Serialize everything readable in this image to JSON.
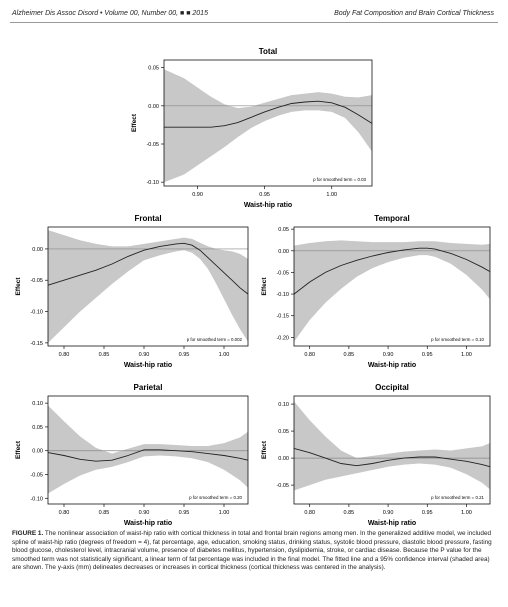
{
  "header": {
    "left": "Alzheimer Dis Assoc Disord • Volume 00, Number 00, ■ ■ 2015",
    "right": "Body Fat Composition and Brain Cortical Thickness"
  },
  "chart_data": [
    {
      "type": "line",
      "title": "Total",
      "xlabel": "Waist-hip ratio",
      "ylabel": "Effect",
      "annotation": "p for smoothed term = 0.03",
      "xlim": [
        0.875,
        1.03
      ],
      "ylim": [
        -0.105,
        0.06
      ],
      "xticks": [
        "0.90",
        "0.95",
        "1.00"
      ],
      "xticks_minor": [
        "0.85",
        "0.90",
        "0.95",
        "1.00"
      ],
      "xtick_values": [
        0.85,
        0.9,
        0.95,
        1.0
      ],
      "yticks": [
        0.05,
        0.0,
        -0.05,
        -0.1
      ],
      "ytick_labels": [
        "0.05",
        "0.00",
        "-0.05",
        "-0.10"
      ],
      "zero_line": 0,
      "x": [
        0.875,
        0.89,
        0.9,
        0.91,
        0.92,
        0.93,
        0.94,
        0.95,
        0.96,
        0.97,
        0.98,
        0.99,
        1.0,
        1.01,
        1.02,
        1.03
      ],
      "fit": [
        -0.028,
        -0.028,
        -0.028,
        -0.028,
        -0.026,
        -0.022,
        -0.015,
        -0.008,
        -0.002,
        0.003,
        0.005,
        0.006,
        0.004,
        -0.002,
        -0.012,
        -0.023
      ],
      "lower": [
        -0.1,
        -0.09,
        -0.078,
        -0.066,
        -0.054,
        -0.041,
        -0.029,
        -0.02,
        -0.013,
        -0.008,
        -0.006,
        -0.006,
        -0.008,
        -0.016,
        -0.035,
        -0.06
      ],
      "upper": [
        0.048,
        0.036,
        0.024,
        0.012,
        0.002,
        -0.003,
        -0.001,
        0.004,
        0.009,
        0.014,
        0.016,
        0.018,
        0.016,
        0.012,
        0.011,
        0.014
      ]
    },
    {
      "type": "line",
      "title": "Frontal",
      "xlabel": "Waist-hip ratio",
      "ylabel": "Effect",
      "annotation": "p for smoothed term = 0.002",
      "xlim": [
        0.78,
        1.03
      ],
      "ylim": [
        -0.155,
        0.035
      ],
      "xticks": [
        "0.80",
        "0.85",
        "0.90",
        "0.95",
        "1.00"
      ],
      "xtick_values": [
        0.8,
        0.85,
        0.9,
        0.95,
        1.0
      ],
      "yticks": [
        0.0,
        -0.05,
        -0.1,
        -0.15
      ],
      "ytick_labels": [
        "0.00",
        "-0.05",
        "-0.10",
        "-0.15"
      ],
      "zero_line": 0,
      "x": [
        0.78,
        0.8,
        0.82,
        0.84,
        0.86,
        0.88,
        0.9,
        0.92,
        0.94,
        0.95,
        0.96,
        0.97,
        0.98,
        0.99,
        1.0,
        1.01,
        1.02,
        1.03
      ],
      "fit": [
        -0.058,
        -0.05,
        -0.042,
        -0.034,
        -0.024,
        -0.012,
        -0.002,
        0.004,
        0.008,
        0.009,
        0.006,
        -0.002,
        -0.014,
        -0.026,
        -0.038,
        -0.05,
        -0.062,
        -0.072
      ],
      "lower": [
        -0.15,
        -0.125,
        -0.1,
        -0.078,
        -0.056,
        -0.036,
        -0.018,
        -0.01,
        -0.004,
        -0.002,
        -0.006,
        -0.016,
        -0.032,
        -0.055,
        -0.08,
        -0.105,
        -0.128,
        -0.148
      ],
      "upper": [
        0.03,
        0.022,
        0.014,
        0.008,
        0.004,
        0.004,
        0.008,
        0.012,
        0.016,
        0.018,
        0.016,
        0.01,
        0.004,
        0.0,
        -0.002,
        -0.004,
        -0.008,
        -0.016
      ]
    },
    {
      "type": "line",
      "title": "Temporal",
      "xlabel": "Waist-hip ratio",
      "ylabel": "Effect",
      "annotation": "p for smoothed term = 0.10",
      "xlim": [
        0.78,
        1.03
      ],
      "ylim": [
        -0.22,
        0.055
      ],
      "xticks": [
        "0.80",
        "0.85",
        "0.90",
        "0.95",
        "1.00"
      ],
      "xtick_values": [
        0.8,
        0.85,
        0.9,
        0.95,
        1.0
      ],
      "yticks": [
        0.05,
        0.0,
        -0.05,
        -0.1,
        -0.15,
        -0.2
      ],
      "ytick_labels": [
        "0.05",
        "0.00",
        "-0.05",
        "-0.10",
        "-0.15",
        "-0.20"
      ],
      "zero_line": 0,
      "x": [
        0.78,
        0.8,
        0.82,
        0.84,
        0.86,
        0.88,
        0.9,
        0.92,
        0.94,
        0.95,
        0.96,
        0.98,
        1.0,
        1.02,
        1.03
      ],
      "fit": [
        -0.1,
        -0.072,
        -0.05,
        -0.034,
        -0.022,
        -0.012,
        -0.004,
        0.002,
        0.006,
        0.006,
        0.004,
        -0.006,
        -0.02,
        -0.038,
        -0.048
      ],
      "lower": [
        -0.21,
        -0.16,
        -0.12,
        -0.088,
        -0.06,
        -0.04,
        -0.026,
        -0.016,
        -0.01,
        -0.01,
        -0.014,
        -0.03,
        -0.056,
        -0.09,
        -0.112
      ],
      "upper": [
        0.012,
        0.018,
        0.022,
        0.024,
        0.022,
        0.02,
        0.02,
        0.02,
        0.022,
        0.022,
        0.022,
        0.018,
        0.016,
        0.014,
        0.016
      ]
    },
    {
      "type": "line",
      "title": "Parietal",
      "xlabel": "Waist-hip ratio",
      "ylabel": "Effect",
      "annotation": "p for smoothed term = 0.20",
      "xlim": [
        0.78,
        1.03
      ],
      "ylim": [
        -0.112,
        0.115
      ],
      "xticks": [
        "0.80",
        "0.85",
        "0.90",
        "0.95",
        "1.00"
      ],
      "xtick_values": [
        0.8,
        0.85,
        0.9,
        0.95,
        1.0
      ],
      "yticks": [
        0.1,
        0.05,
        0.0,
        -0.05,
        -0.1
      ],
      "ytick_labels": [
        "0.10",
        "0.05",
        "0.00",
        "-0.05",
        "-0.10"
      ],
      "zero_line": 0,
      "x": [
        0.78,
        0.8,
        0.82,
        0.84,
        0.86,
        0.88,
        0.9,
        0.92,
        0.94,
        0.96,
        0.98,
        1.0,
        1.02,
        1.03
      ],
      "fit": [
        -0.004,
        -0.01,
        -0.018,
        -0.022,
        -0.02,
        -0.01,
        0.002,
        0.002,
        0.0,
        -0.002,
        -0.006,
        -0.01,
        -0.016,
        -0.02
      ],
      "lower": [
        -0.09,
        -0.07,
        -0.052,
        -0.04,
        -0.034,
        -0.024,
        -0.012,
        -0.01,
        -0.012,
        -0.016,
        -0.024,
        -0.04,
        -0.062,
        -0.078
      ],
      "upper": [
        0.095,
        0.062,
        0.03,
        0.006,
        -0.006,
        0.004,
        0.014,
        0.014,
        0.012,
        0.01,
        0.01,
        0.016,
        0.028,
        0.04
      ]
    },
    {
      "type": "line",
      "title": "Occipital",
      "xlabel": "Waist-hip ratio",
      "ylabel": "Effect",
      "annotation": "p for smoothed term = 0.21",
      "xlim": [
        0.78,
        1.03
      ],
      "ylim": [
        -0.085,
        0.115
      ],
      "xticks": [
        "0.80",
        "0.85",
        "0.90",
        "0.95",
        "1.00"
      ],
      "xtick_values": [
        0.8,
        0.85,
        0.9,
        0.95,
        1.0
      ],
      "yticks": [
        0.1,
        0.05,
        0.0,
        -0.05
      ],
      "ytick_labels": [
        "0.10",
        "0.05",
        "0.00",
        "-0.05"
      ],
      "zero_line": 0,
      "x": [
        0.78,
        0.8,
        0.82,
        0.84,
        0.86,
        0.88,
        0.9,
        0.92,
        0.94,
        0.96,
        0.98,
        1.0,
        1.02,
        1.03
      ],
      "fit": [
        0.018,
        0.01,
        0.0,
        -0.01,
        -0.014,
        -0.01,
        -0.004,
        0.0,
        0.002,
        0.002,
        -0.002,
        -0.006,
        -0.012,
        -0.016
      ],
      "lower": [
        -0.06,
        -0.05,
        -0.04,
        -0.034,
        -0.028,
        -0.022,
        -0.016,
        -0.012,
        -0.01,
        -0.012,
        -0.018,
        -0.03,
        -0.046,
        -0.058
      ],
      "upper": [
        0.105,
        0.07,
        0.04,
        0.014,
        0.0,
        0.004,
        0.008,
        0.012,
        0.014,
        0.016,
        0.014,
        0.018,
        0.022,
        0.028
      ]
    }
  ],
  "caption": {
    "label": "FIGURE 1.",
    "text": "The nonlinear association of waist-hip ratio with cortical thickness in total and frontal brain regions among men. In the generalized additive model, we included spline of waist-hip ratio (degrees of freedom = 4), fat percentage, age, education, smoking status, drinking status, systolic blood pressure, diastolic blood pressure, fasting blood glucose, cholesterol level, intracranial volume, presence of diabetes mellitus, hypertension, dyslipidemia, stroke, or cardiac disease. Because the P value for the smoothed term was not statistically significant, a linear term of fat percentage was included in the final model. The fitted line and a 95% confidence interval (shaded area) are shown. The y-axis (mm) delineates decreases or increases in cortical thickness (cortical thickness was centered in the analysis)."
  },
  "colors": {
    "band": "#c8c8c8",
    "fit_line": "#222222",
    "zero_line": "#888888",
    "axis": "#111111",
    "caption_label": "#1a1a1a"
  }
}
